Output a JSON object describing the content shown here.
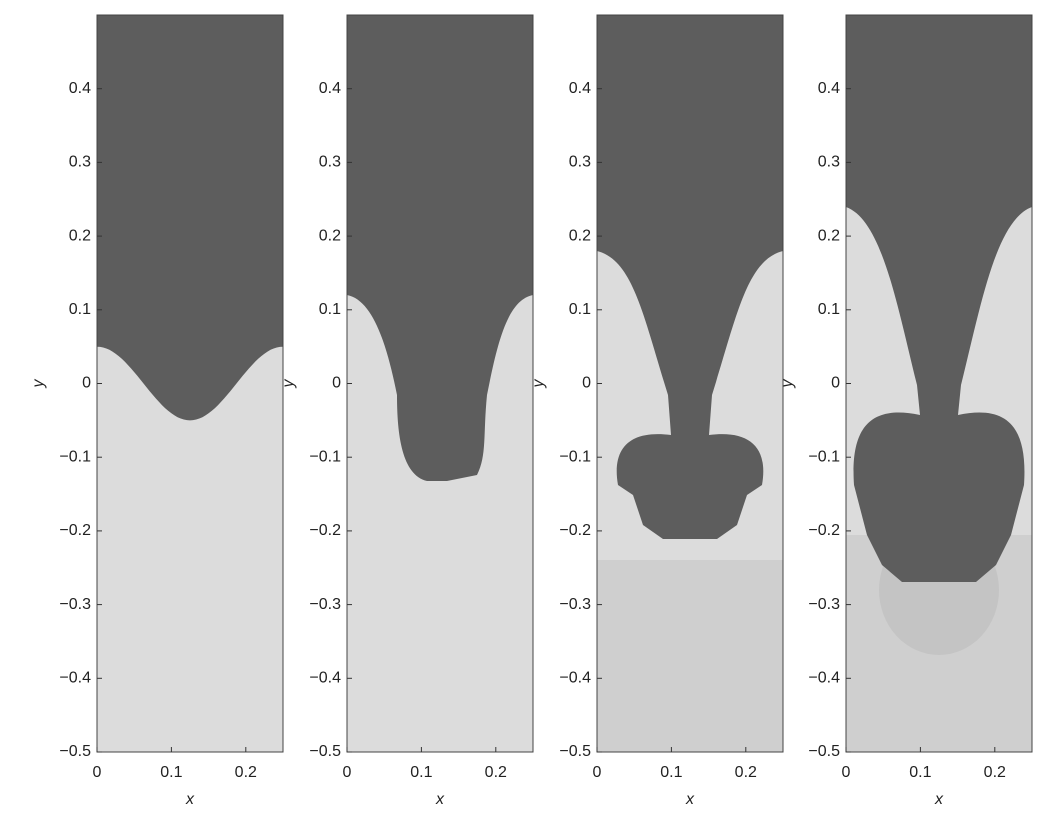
{
  "chart_data": [
    {
      "type": "image",
      "xlabel": "x",
      "ylabel": "y",
      "xlim": [
        0,
        0.25
      ],
      "ylim": [
        -0.5,
        0.5
      ],
      "xticks": [
        0,
        0.1,
        0.2
      ],
      "yticks": [
        {
          "value": -0.5,
          "label": "−0.5"
        },
        {
          "value": -0.4,
          "label": "−0.4"
        },
        {
          "value": -0.3,
          "label": "−0.3"
        },
        {
          "value": -0.2,
          "label": "−0.2"
        },
        {
          "value": -0.1,
          "label": "−0.1"
        },
        0,
        0.1,
        0.2,
        0.3,
        0.4
      ]
    },
    {
      "type": "image",
      "xlabel": "x",
      "ylabel": "y",
      "xlim": [
        0,
        0.25
      ],
      "ylim": [
        -0.5,
        0.5
      ],
      "xticks": [
        0,
        0.1,
        0.2
      ],
      "yticks": [
        {
          "value": -0.5,
          "label": "−0.5"
        },
        {
          "value": -0.4,
          "label": "−0.4"
        },
        {
          "value": -0.3,
          "label": "−0.3"
        },
        {
          "value": -0.2,
          "label": "−0.2"
        },
        {
          "value": -0.1,
          "label": "−0.1"
        },
        0,
        0.1,
        0.2,
        0.3,
        0.4
      ]
    },
    {
      "type": "image",
      "xlabel": "x",
      "ylabel": "y",
      "xlim": [
        0,
        0.25
      ],
      "ylim": [
        -0.5,
        0.5
      ],
      "xticks": [
        0,
        0.1,
        0.2
      ],
      "yticks": [
        {
          "value": -0.5,
          "label": "−0.5"
        },
        {
          "value": -0.4,
          "label": "−0.4"
        },
        {
          "value": -0.3,
          "label": "−0.3"
        },
        {
          "value": -0.2,
          "label": "−0.2"
        },
        {
          "value": -0.1,
          "label": "−0.1"
        },
        0,
        0.1,
        0.2,
        0.3,
        0.4
      ]
    },
    {
      "type": "image",
      "xlabel": "x",
      "ylabel": "y",
      "xlim": [
        0,
        0.25
      ],
      "ylim": [
        -0.5,
        0.5
      ],
      "xticks": [
        0,
        0.1,
        0.2
      ],
      "yticks": [
        {
          "value": -0.5,
          "label": "−0.5"
        },
        {
          "value": -0.4,
          "label": "−0.4"
        },
        {
          "value": -0.3,
          "label": "−0.3"
        },
        {
          "value": -0.2,
          "label": "−0.2"
        },
        {
          "value": -0.1,
          "label": "−0.1"
        },
        0,
        0.1,
        0.2,
        0.3,
        0.4
      ]
    }
  ]
}
